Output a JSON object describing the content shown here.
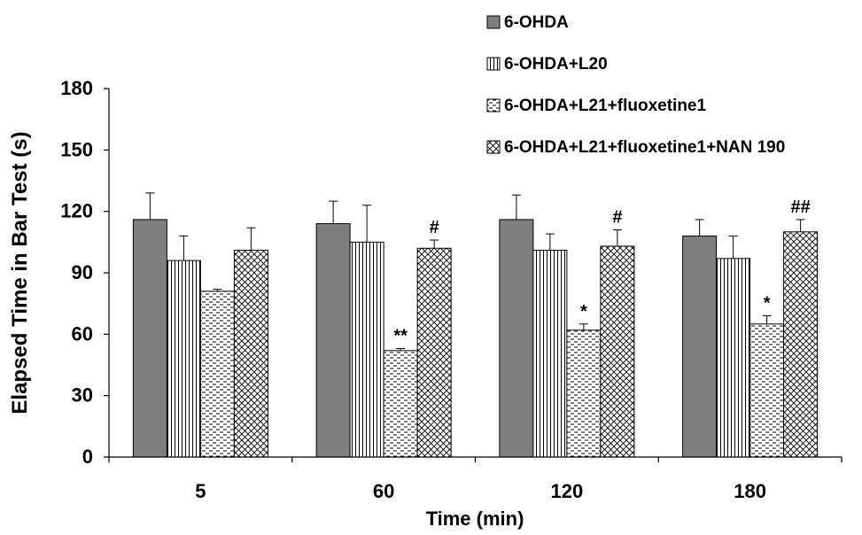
{
  "chart_data": {
    "type": "bar",
    "xlabel": "Time (min)",
    "ylabel": "Elapsed Time in Bar Test (s)",
    "ylim": [
      0,
      180
    ],
    "yticks": [
      0,
      30,
      60,
      90,
      120,
      150,
      180
    ],
    "categories": [
      "5",
      "60",
      "120",
      "180"
    ],
    "legend_position": "top-right",
    "series": [
      {
        "name": "6-OHDA",
        "pattern": "solid",
        "color": "#7f7f7f",
        "values": [
          116,
          114,
          116,
          108
        ],
        "errors": [
          13,
          11,
          12,
          8
        ],
        "annotations": [
          "",
          "",
          "",
          ""
        ]
      },
      {
        "name": "6-OHDA+L20",
        "pattern": "vertical-lines",
        "color": "#000000",
        "values": [
          96,
          105,
          101,
          97
        ],
        "errors": [
          12,
          18,
          8,
          11
        ],
        "annotations": [
          "",
          "",
          "",
          ""
        ]
      },
      {
        "name": "6-OHDA+L21+fluoxetine1",
        "pattern": "dashed-horizontal",
        "color": "#000000",
        "values": [
          81,
          52,
          62,
          65
        ],
        "errors": [
          1,
          1,
          3,
          4
        ],
        "annotations": [
          "",
          "**",
          "*",
          "*"
        ]
      },
      {
        "name": "6-OHDA+L21+fluoxetine1+NAN 190",
        "pattern": "crosshatch",
        "color": "#000000",
        "values": [
          101,
          102,
          103,
          110
        ],
        "errors": [
          11,
          4,
          8,
          6
        ],
        "annotations": [
          "",
          "#",
          "#",
          "##"
        ]
      }
    ]
  }
}
